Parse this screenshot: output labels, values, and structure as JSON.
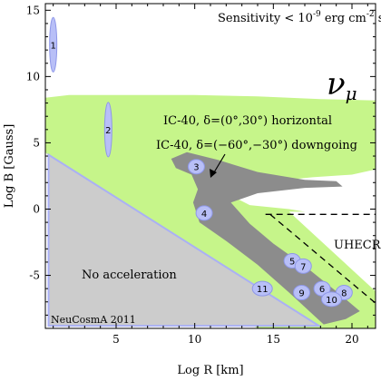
{
  "chart_data": {
    "type": "scatter",
    "xlabel": "Log R [km]",
    "ylabel": "Log B [Gauss]",
    "xlim": [
      0.5,
      21.5
    ],
    "ylim": [
      -9,
      15.5
    ],
    "xticks": [
      5,
      10,
      15,
      20
    ],
    "yticks": [
      15,
      10,
      5,
      0,
      -5
    ],
    "sensitivity_label": "Sensitivity < 10",
    "sensitivity_exp": "-9",
    "sensitivity_units": " erg cm",
    "sensitivity_units_exp": "-2",
    "sensitivity_s": " s",
    "sensitivity_s_exp": "-1",
    "neutrino_symbol": "ν",
    "neutrino_subscript": "μ",
    "regions": [
      {
        "name": "IC-40, δ=(0°,30°) horizontal",
        "label": "IC-40, δ=(0°,30°) horizontal",
        "color": "#c6f58a"
      },
      {
        "name": "IC-40, δ=(−60°,−30°) downgoing",
        "label": "IC-40, δ=(−60°,−30°) downgoing",
        "color": "#8c8c8c"
      },
      {
        "name": "No acceleration",
        "label": "No acceleration",
        "color": "#cccccc",
        "edge": "#aab0f5"
      }
    ],
    "uhecr_label": "UHECR",
    "credit": "NeuCosmA 2011",
    "sources": [
      {
        "id": "1",
        "x": 1.0,
        "y": 12.4,
        "orientation": "v"
      },
      {
        "id": "2",
        "x": 4.5,
        "y": 6.0,
        "orientation": "v"
      },
      {
        "id": "3",
        "x": 10.1,
        "y": 3.2,
        "orientation": "h"
      },
      {
        "id": "4",
        "x": 10.6,
        "y": -0.3,
        "orientation": "h"
      },
      {
        "id": "5",
        "x": 16.2,
        "y": -3.9,
        "orientation": "h"
      },
      {
        "id": "6",
        "x": 18.1,
        "y": -6.0,
        "orientation": "h"
      },
      {
        "id": "7",
        "x": 16.9,
        "y": -4.3,
        "orientation": "h"
      },
      {
        "id": "8",
        "x": 19.5,
        "y": -6.3,
        "orientation": "h"
      },
      {
        "id": "9",
        "x": 16.8,
        "y": -6.3,
        "orientation": "h"
      },
      {
        "id": "10",
        "x": 18.7,
        "y": -6.8,
        "orientation": "h"
      },
      {
        "id": "11",
        "x": 14.3,
        "y": -6.0,
        "orientation": "h"
      }
    ]
  }
}
